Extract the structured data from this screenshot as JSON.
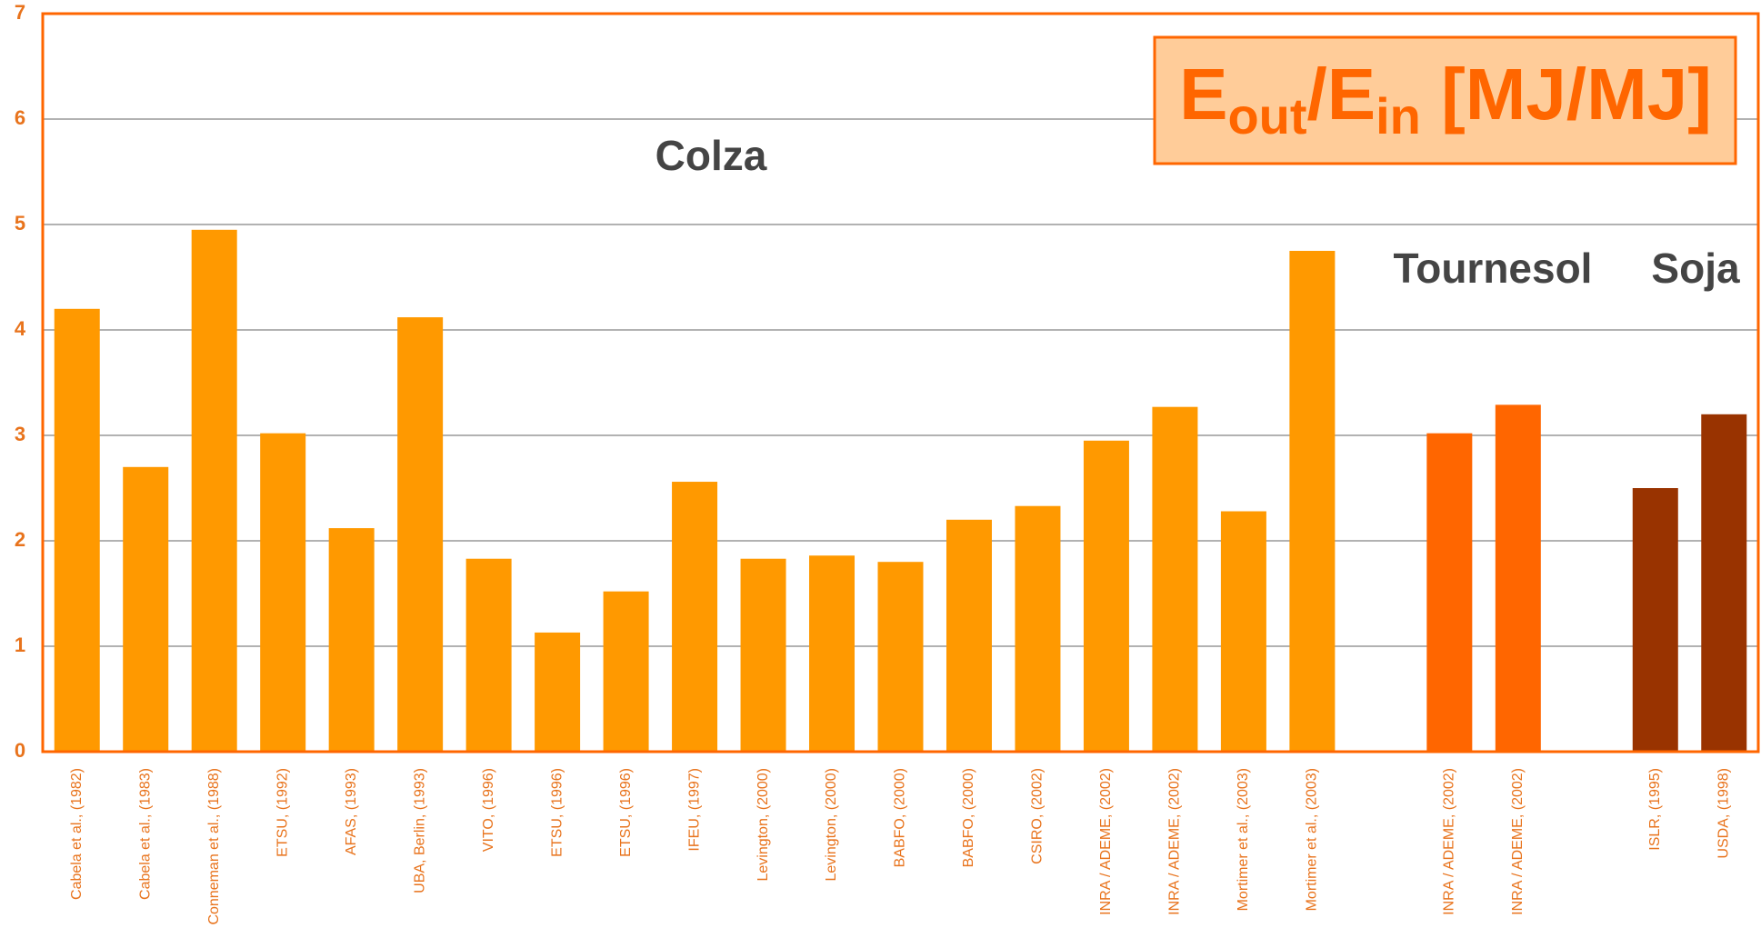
{
  "chart_data": {
    "type": "bar",
    "title_parts": [
      "E",
      "out",
      "/E",
      "in",
      " [MJ/MJ]"
    ],
    "annotations": [
      "Colza",
      "Tournesol",
      "Soja"
    ],
    "categories": [
      "Cabela et al., (1982)",
      "Cabela et al., (1983)",
      "Conneman et al., (1988)",
      "ETSU, (1992)",
      "AFAS, (1993)",
      "UBA, Berlin, (1993)",
      "VITO, (1996)",
      "ETSU, (1996)",
      "ETSU, (1996)",
      "IFEU, (1997)",
      "Levington, (2000)",
      "Levington, (2000)",
      "BABFO, (2000)",
      "BABFO, (2000)",
      "CSIRO, (2002)",
      "INRA / ADEME, (2002)",
      "INRA / ADEME, (2002)",
      "Mortimer et al., (2003)",
      "Mortimer et al., (2003)",
      null,
      "INRA / ADEME, (2002)",
      "INRA / ADEME, (2002)",
      null,
      "ISLR, (1995)",
      "USDA, (1998)"
    ],
    "values": [
      4.2,
      2.7,
      4.95,
      3.02,
      2.12,
      4.12,
      1.83,
      1.13,
      1.52,
      2.56,
      1.83,
      1.86,
      1.8,
      2.2,
      2.33,
      2.95,
      3.27,
      2.28,
      4.75,
      null,
      3.02,
      3.29,
      null,
      2.5,
      3.2
    ],
    "colors": [
      "#ff9900",
      "#ff9900",
      "#ff9900",
      "#ff9900",
      "#ff9900",
      "#ff9900",
      "#ff9900",
      "#ff9900",
      "#ff9900",
      "#ff9900",
      "#ff9900",
      "#ff9900",
      "#ff9900",
      "#ff9900",
      "#ff9900",
      "#ff9900",
      "#ff9900",
      "#ff9900",
      "#ff9900",
      null,
      "#ff6600",
      "#ff6600",
      null,
      "#993300",
      "#993300"
    ],
    "ylim": [
      0,
      7
    ],
    "yticks": [
      0,
      1,
      2,
      3,
      4,
      5,
      6,
      7
    ],
    "grid": true
  }
}
